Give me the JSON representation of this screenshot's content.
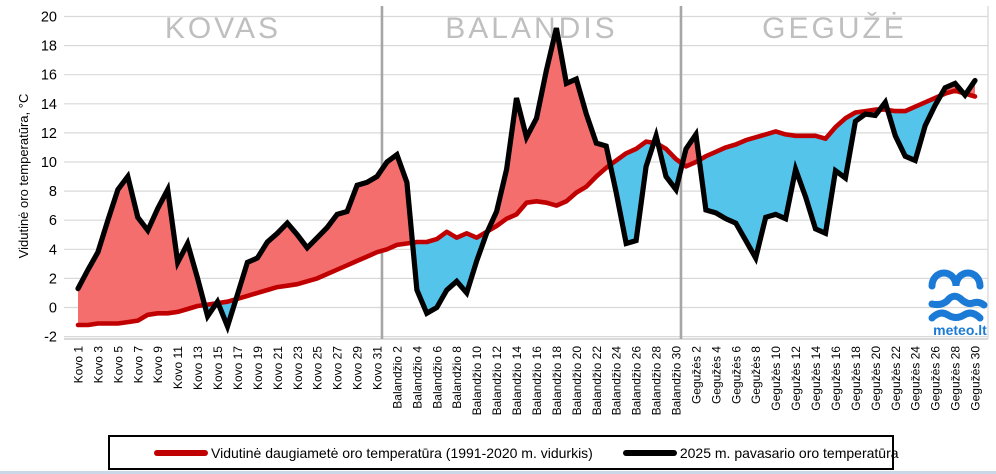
{
  "chart_data": {
    "type": "line",
    "title_months": [
      "KOVAS",
      "BALANDIS",
      "GEGUŽĖ"
    ],
    "ylabel": "Vidutinė oro temperatūra, °C",
    "ylim": [
      -2,
      20
    ],
    "yticks": [
      20,
      18,
      16,
      14,
      12,
      10,
      8,
      6,
      4,
      2,
      0,
      -2
    ],
    "grid": "horizontal",
    "legend_position": "bottom",
    "x_labels": [
      "Kovo 1",
      "Kovo 3",
      "Kovo 5",
      "Kovo 7",
      "Kovo 9",
      "Kovo 11",
      "Kovo 13",
      "Kovo 15",
      "Kovo 17",
      "Kovo 19",
      "Kovo 21",
      "Kovo 23",
      "Kovo 25",
      "Kovo 27",
      "Kovo 29",
      "Kovo 31",
      "Balandžio 2",
      "Balandžio 4",
      "Balandžio 6",
      "Balandžio 8",
      "Balandžio 10",
      "Balandžio 12",
      "Balandžio 14",
      "Balandžio 16",
      "Balandžio 18",
      "Balandžio 20",
      "Balandžio 22",
      "Balandžio 24",
      "Balandžio 26",
      "Balandžio 28",
      "Balandžio 30",
      "Gegužės 2",
      "Gegužės 4",
      "Gegužės 6",
      "Gegužės 8",
      "Gegužės 10",
      "Gegužės 12",
      "Gegužės 14",
      "Gegužės 16",
      "Gegužės 18",
      "Gegužės 20",
      "Gegužės 22",
      "Gegužės 24",
      "Gegužės 26",
      "Gegužės 28",
      "Gegužės 30"
    ],
    "x_label_every_nth_point": 2,
    "series": [
      {
        "name": "Vidutinė daugiametė oro temperatūra (1991-2020 m. vidurkis)",
        "color": "#c00000",
        "values": [
          -1.2,
          -1.2,
          -1.1,
          -1.1,
          -1.1,
          -1.0,
          -0.9,
          -0.5,
          -0.4,
          -0.4,
          -0.3,
          -0.1,
          0.1,
          0.2,
          0.3,
          0.4,
          0.6,
          0.8,
          1.0,
          1.2,
          1.4,
          1.5,
          1.6,
          1.8,
          2.0,
          2.3,
          2.6,
          2.9,
          3.2,
          3.5,
          3.8,
          4.0,
          4.3,
          4.4,
          4.5,
          4.5,
          4.7,
          5.2,
          4.8,
          5.1,
          4.8,
          5.2,
          5.6,
          6.1,
          6.4,
          7.2,
          7.3,
          7.2,
          7.0,
          7.3,
          7.9,
          8.3,
          9.0,
          9.6,
          10.1,
          10.6,
          10.9,
          11.4,
          11.3,
          10.9,
          10.2,
          9.7,
          10.0,
          10.4,
          10.7,
          11.0,
          11.2,
          11.5,
          11.7,
          11.9,
          12.1,
          11.9,
          11.8,
          11.8,
          11.8,
          11.6,
          12.4,
          13.0,
          13.4,
          13.5,
          13.6,
          13.6,
          13.5,
          13.5,
          13.8,
          14.1,
          14.4,
          14.7,
          14.9,
          14.7,
          14.5
        ]
      },
      {
        "name": "2025 m. pavasario oro temperatūra",
        "color": "#000000",
        "values": [
          1.3,
          2.6,
          3.8,
          6.0,
          8.1,
          9.0,
          6.2,
          5.3,
          6.8,
          8.1,
          3.1,
          4.4,
          2.0,
          -0.6,
          0.4,
          -1.3,
          0.9,
          3.1,
          3.4,
          4.5,
          5.1,
          5.8,
          5.0,
          4.1,
          4.8,
          5.5,
          6.4,
          6.6,
          8.4,
          8.6,
          9.0,
          10.0,
          10.5,
          8.6,
          1.2,
          -0.4,
          0.0,
          1.2,
          1.8,
          1.0,
          3.2,
          5.1,
          6.6,
          9.5,
          14.4,
          11.7,
          13.0,
          16.3,
          19.2,
          15.4,
          15.7,
          13.3,
          11.3,
          11.1,
          7.9,
          4.4,
          4.6,
          9.7,
          11.8,
          9.0,
          8.1,
          10.9,
          11.9,
          6.7,
          6.5,
          6.1,
          5.8,
          4.6,
          3.4,
          6.2,
          6.4,
          6.1,
          9.5,
          7.6,
          5.4,
          5.1,
          9.4,
          8.9,
          12.8,
          13.3,
          13.2,
          14.1,
          11.8,
          10.4,
          10.1,
          12.5,
          13.9,
          15.1,
          15.4,
          14.6,
          15.6
        ]
      }
    ],
    "fill_above_color": "#f56e6e",
    "fill_below_color": "#55c4ea",
    "gridline_color": "#d9d9d9",
    "separator_color": "#a6a6a6",
    "month_label_color": "#bfbfbf"
  },
  "legend": {
    "items": [
      {
        "label": "Vidutinė daugiametė oro temperatūra (1991-2020 m. vidurkis)",
        "color": "#c00000"
      },
      {
        "label": "2025 m. pavasario oro temperatūra",
        "color": "#000000"
      }
    ]
  },
  "logo": {
    "text": "meteo.lt",
    "color": "#1b7ad6"
  }
}
